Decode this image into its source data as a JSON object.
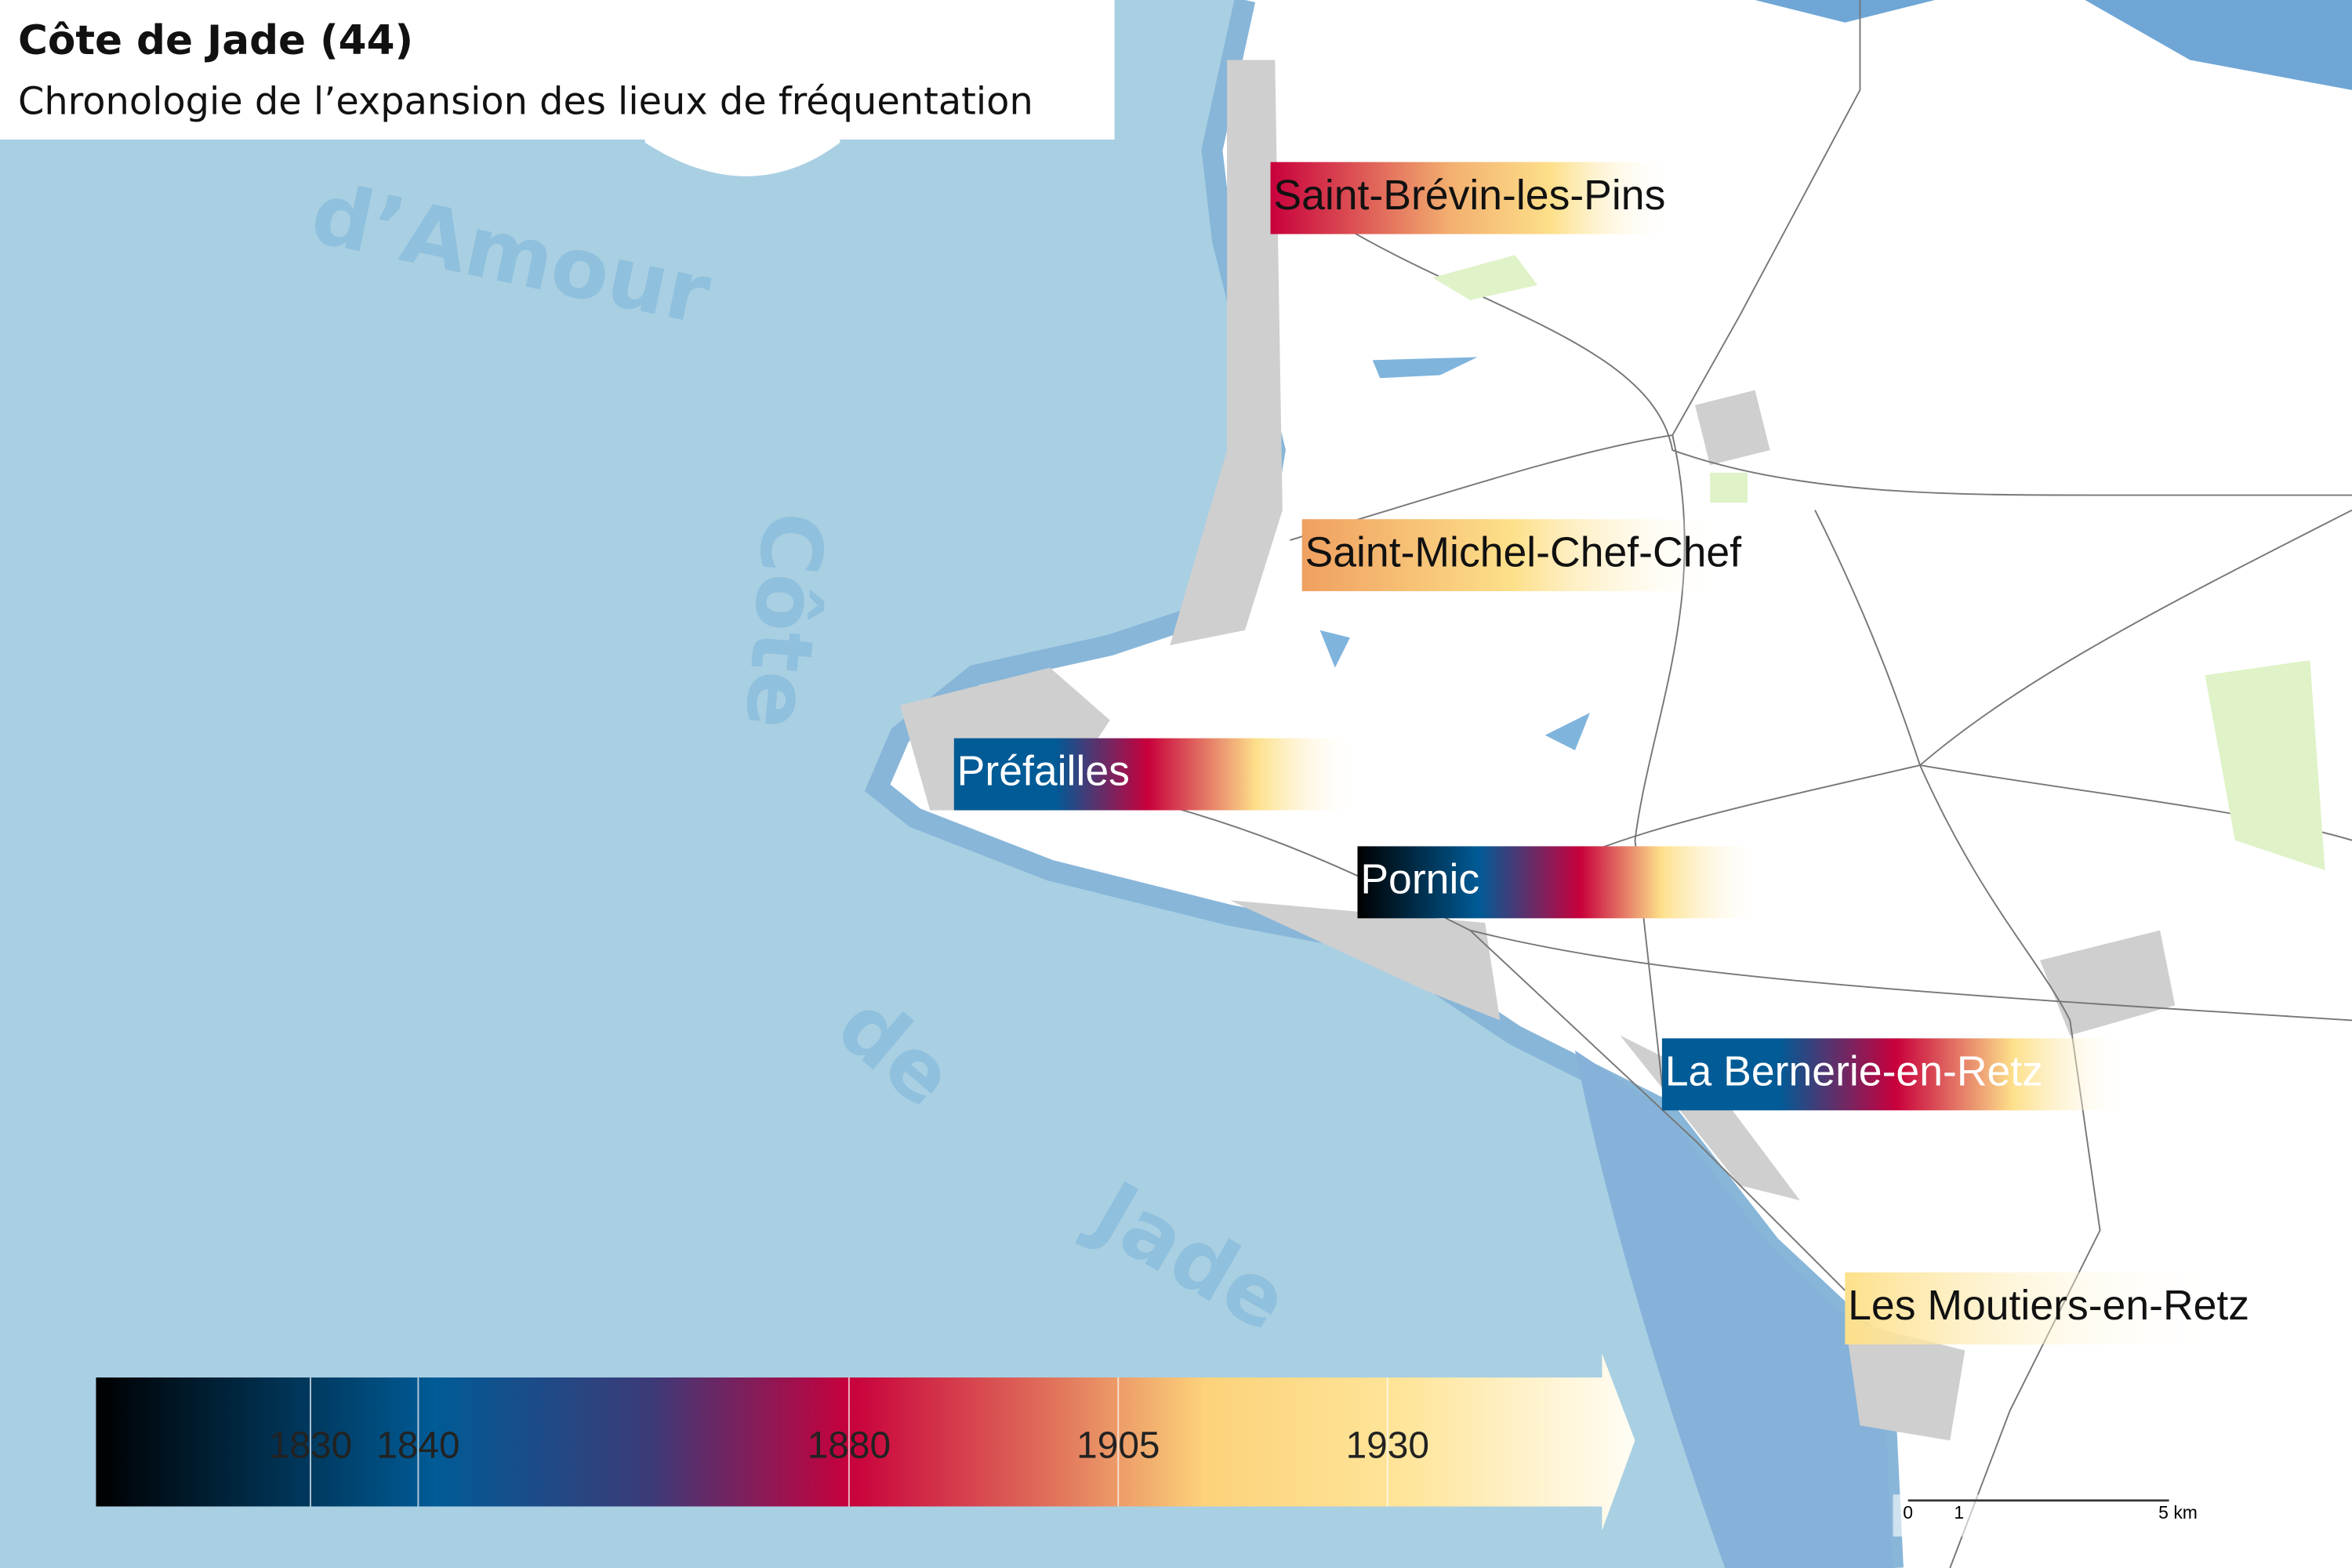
{
  "header": {
    "title": "Côte de Jade (44)",
    "subtitle": "Chronologie de l’expansion des lieux de fréquentation"
  },
  "sea_labels": [
    "d’Amour",
    "Côte",
    "de",
    "Jade"
  ],
  "places": [
    "Saint-Brévin-les-Pins",
    "Saint-Michel-Chef-Chef",
    "Préfailles",
    "Pornic",
    "La Bernerie-en-Retz",
    "Les Moutiers-en-Retz"
  ],
  "legend": {
    "ticks": [
      1830,
      1840,
      1880,
      1905,
      1930
    ]
  },
  "scale_bar": {
    "labels": [
      "0",
      "1",
      "5 km"
    ]
  }
}
